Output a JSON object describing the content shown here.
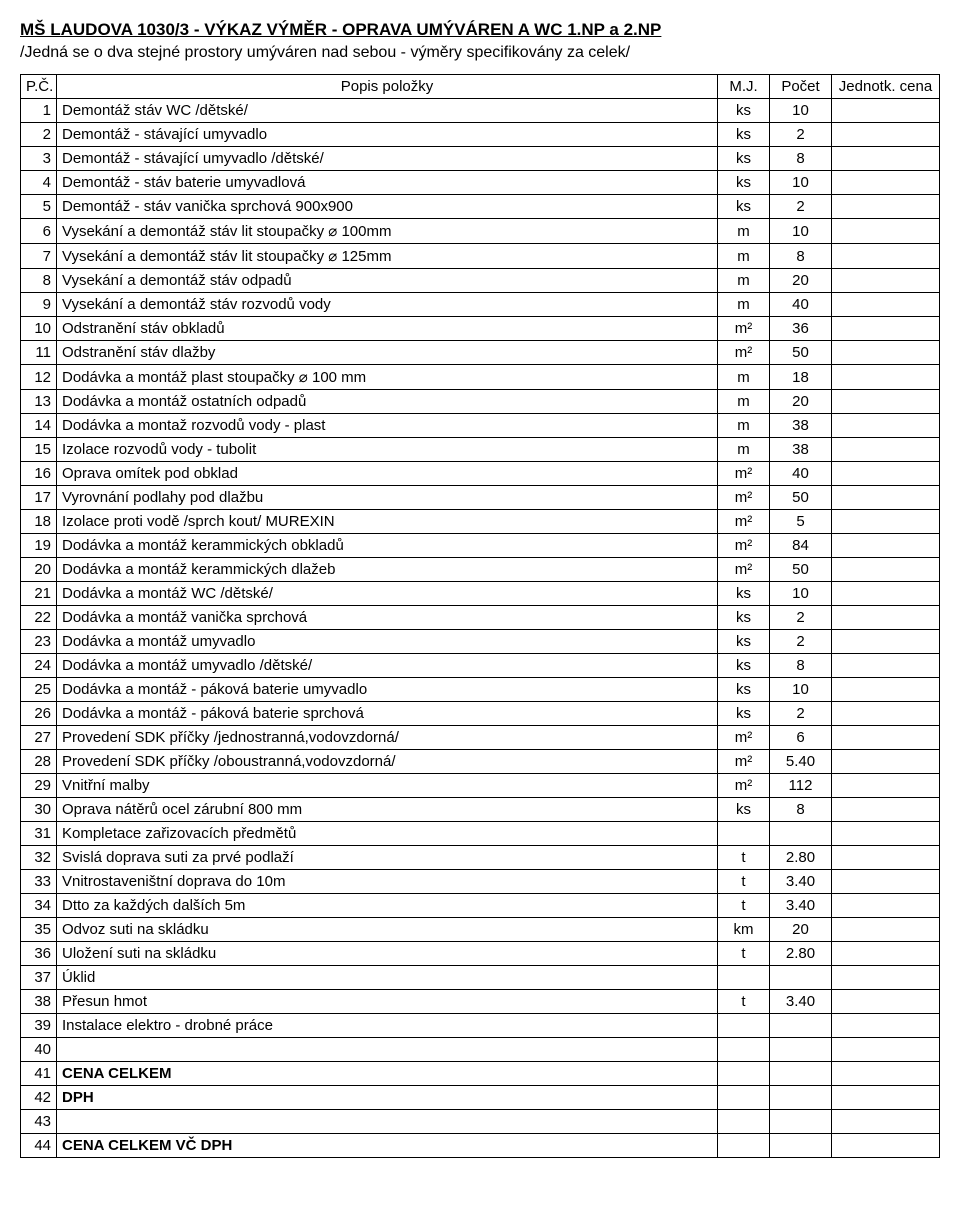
{
  "title": "MŠ LAUDOVA 1030/3 - VÝKAZ VÝMĚR - OPRAVA UMÝVÁREN A WC 1.NP a 2.NP",
  "subtitle": "/Jedná se o dva stejné prostory umýváren nad sebou - výměry specifikovány za celek/",
  "headers": {
    "idx": "P.Č.",
    "desc": "Popis položky",
    "mj": "M.J.",
    "cnt": "Počet",
    "price": "Jednotk. cena"
  },
  "rows": [
    {
      "n": "1",
      "d": "Demontáž stáv WC /dětské/",
      "u": "ks",
      "c": "10",
      "p": ""
    },
    {
      "n": "2",
      "d": "Demontáž - stávající umyvadlo",
      "u": "ks",
      "c": "2",
      "p": ""
    },
    {
      "n": "3",
      "d": "Demontáž - stávající umyvadlo /dětské/",
      "u": "ks",
      "c": "8",
      "p": ""
    },
    {
      "n": "4",
      "d": "Demontáž - stáv baterie umyvadlová",
      "u": "ks",
      "c": "10",
      "p": ""
    },
    {
      "n": "5",
      "d": "Demontáž - stáv vanička sprchová 900x900",
      "u": "ks",
      "c": "2",
      "p": ""
    },
    {
      "n": "6",
      "d": "Vysekání a demontáž stáv lit stoupačky ⌀ 100mm",
      "u": "m",
      "c": "10",
      "p": ""
    },
    {
      "n": "7",
      "d": "Vysekání a demontáž stáv lit stoupačky ⌀ 125mm",
      "u": "m",
      "c": "8",
      "p": ""
    },
    {
      "n": "8",
      "d": "Vysekání a demontáž stáv odpadů",
      "u": "m",
      "c": "20",
      "p": ""
    },
    {
      "n": "9",
      "d": "Vysekání a demontáž stáv rozvodů vody",
      "u": "m",
      "c": "40",
      "p": ""
    },
    {
      "n": "10",
      "d": "Odstranění stáv obkladů",
      "u": "m²",
      "c": "36",
      "p": ""
    },
    {
      "n": "11",
      "d": "Odstranění stáv dlažby",
      "u": "m²",
      "c": "50",
      "p": ""
    },
    {
      "n": "12",
      "d": "Dodávka a montáž plast stoupačky ⌀ 100 mm",
      "u": "m",
      "c": "18",
      "p": ""
    },
    {
      "n": "13",
      "d": "Dodávka a montáž ostatních odpadů",
      "u": "m",
      "c": "20",
      "p": ""
    },
    {
      "n": "14",
      "d": "Dodávka a montaž rozvodů vody - plast",
      "u": "m",
      "c": "38",
      "p": ""
    },
    {
      "n": "15",
      "d": "Izolace rozvodů vody - tubolit",
      "u": "m",
      "c": "38",
      "p": ""
    },
    {
      "n": "16",
      "d": "Oprava omítek pod obklad",
      "u": "m²",
      "c": "40",
      "p": ""
    },
    {
      "n": "17",
      "d": "Vyrovnání podlahy pod dlažbu",
      "u": "m²",
      "c": "50",
      "p": ""
    },
    {
      "n": "18",
      "d": "Izolace proti vodě /sprch kout/ MUREXIN",
      "u": "m²",
      "c": "5",
      "p": ""
    },
    {
      "n": "19",
      "d": "Dodávka a montáž kerammických obkladů",
      "u": "m²",
      "c": "84",
      "p": ""
    },
    {
      "n": "20",
      "d": "Dodávka a montáž kerammických dlažeb",
      "u": "m²",
      "c": "50",
      "p": ""
    },
    {
      "n": "21",
      "d": "Dodávka a montáž WC /dětské/",
      "u": "ks",
      "c": "10",
      "p": ""
    },
    {
      "n": "22",
      "d": "Dodávka a montáž vanička sprchová",
      "u": "ks",
      "c": "2",
      "p": ""
    },
    {
      "n": "23",
      "d": "Dodávka a montáž umyvadlo",
      "u": "ks",
      "c": "2",
      "p": ""
    },
    {
      "n": "24",
      "d": "Dodávka a montáž umyvadlo /dětské/",
      "u": "ks",
      "c": "8",
      "p": ""
    },
    {
      "n": "25",
      "d": "Dodávka a montáž - páková baterie umyvadlo",
      "u": "ks",
      "c": "10",
      "p": ""
    },
    {
      "n": "26",
      "d": "Dodávka a montáž - páková baterie sprchová",
      "u": "ks",
      "c": "2",
      "p": ""
    },
    {
      "n": "27",
      "d": "Provedení SDK příčky /jednostranná,vodovzdorná/",
      "u": "m²",
      "c": "6",
      "p": ""
    },
    {
      "n": "28",
      "d": "Provedení SDK příčky /oboustranná,vodovzdorná/",
      "u": "m²",
      "c": "5.40",
      "p": ""
    },
    {
      "n": "29",
      "d": "Vnitřní malby",
      "u": "m²",
      "c": "112",
      "p": ""
    },
    {
      "n": "30",
      "d": "Oprava nátěrů ocel zárubní 800 mm",
      "u": "ks",
      "c": "8",
      "p": ""
    },
    {
      "n": "31",
      "d": "Kompletace zařizovacích předmětů",
      "u": "",
      "c": "",
      "p": ""
    },
    {
      "n": "32",
      "d": "Svislá doprava suti za prvé podlaží",
      "u": "t",
      "c": "2.80",
      "p": ""
    },
    {
      "n": "33",
      "d": "Vnitrostaveništní doprava do 10m",
      "u": "t",
      "c": "3.40",
      "p": ""
    },
    {
      "n": "34",
      "d": "Dtto za každých dalších 5m",
      "u": "t",
      "c": "3.40",
      "p": ""
    },
    {
      "n": "35",
      "d": "Odvoz suti na skládku",
      "u": "km",
      "c": "20",
      "p": ""
    },
    {
      "n": "36",
      "d": "Uložení suti na skládku",
      "u": "t",
      "c": "2.80",
      "p": ""
    },
    {
      "n": "37",
      "d": "Úklid",
      "u": "",
      "c": "",
      "p": ""
    },
    {
      "n": "38",
      "d": "Přesun hmot",
      "u": "t",
      "c": "3.40",
      "p": ""
    },
    {
      "n": "39",
      "d": "Instalace elektro - drobné práce",
      "u": "",
      "c": "",
      "p": ""
    },
    {
      "n": "40",
      "d": "",
      "u": "",
      "c": "",
      "p": ""
    },
    {
      "n": "41",
      "d": "CENA CELKEM",
      "u": "",
      "c": "",
      "p": "",
      "bold": true
    },
    {
      "n": "42",
      "d": "DPH",
      "u": "",
      "c": "",
      "p": "",
      "bold": true
    },
    {
      "n": "43",
      "d": "",
      "u": "",
      "c": "",
      "p": ""
    },
    {
      "n": "44",
      "d": "CENA CELKEM VČ DPH",
      "u": "",
      "c": "",
      "p": "",
      "bold": true
    }
  ]
}
